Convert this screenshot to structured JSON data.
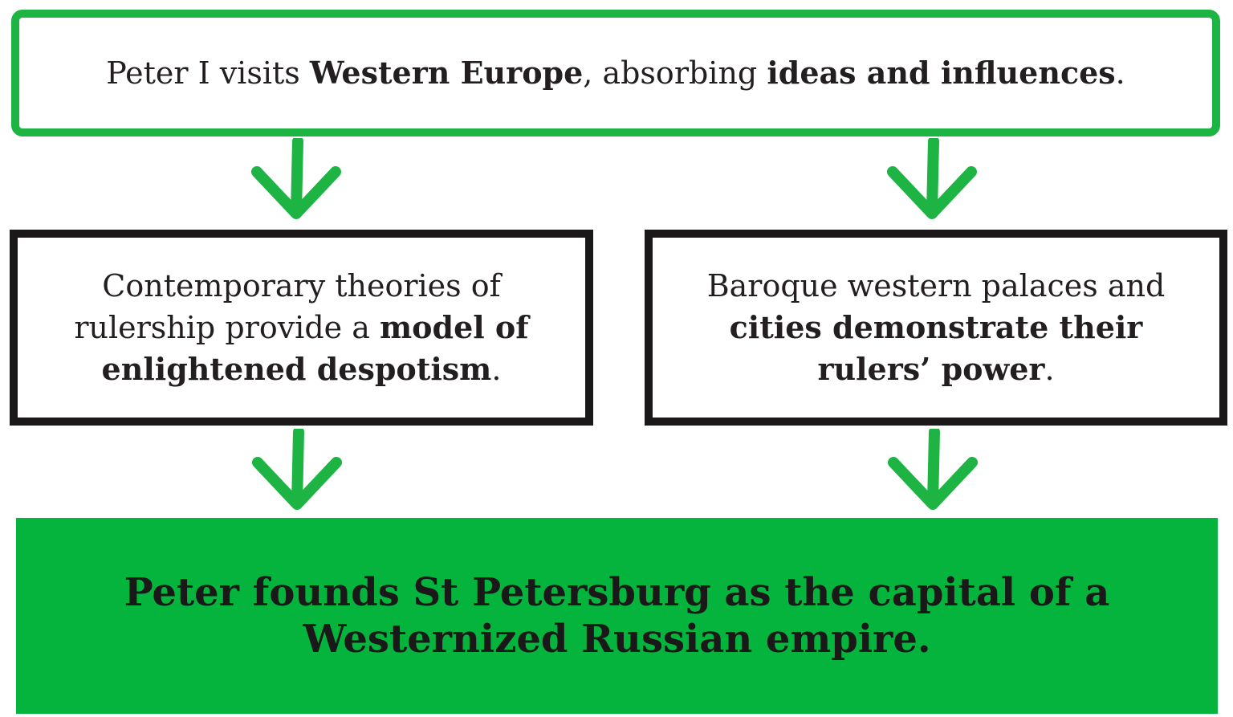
{
  "top": {
    "t1": "Peter I visits ",
    "b1": "Western Europe",
    "t2": ", absorbing ",
    "b2": "ideas and influences",
    "t3": "."
  },
  "left": {
    "t1": "Contemporary theories of rulership provide a ",
    "b1": "model of enlightened despotism",
    "t2": "."
  },
  "right": {
    "t1": "Baroque western palaces and ",
    "b1": "cities demonstrate their rulers’ power",
    "t2": "."
  },
  "bottom": {
    "text": "Peter founds St Petersburg as the capital of a Westernized Russian empire."
  },
  "colors": {
    "green": "#1db443",
    "dark": "#1a1818",
    "fill_green": "#05b43c"
  },
  "icons": {
    "arrow": "arrow-down-icon"
  }
}
